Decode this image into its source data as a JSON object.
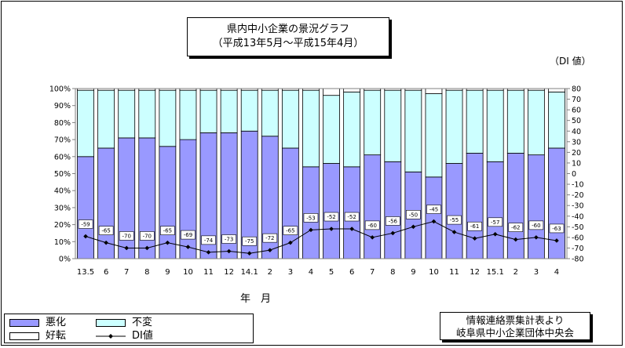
{
  "title_line1": "県内中小企業の景況グラフ",
  "title_line2": "（平成13年5月～平成15年4月）",
  "right_axis_unit": "（DI 値）",
  "x_axis_label": "年　月",
  "legend": {
    "akka": "悪化",
    "fuhen": "不変",
    "kouten": "好転",
    "di": "DI値"
  },
  "source_line1": "情報連絡票集計表より",
  "source_line2": "岐阜県中小企業団体中央会",
  "colors": {
    "akka": "#9999ff",
    "fuhen": "#ccffff",
    "kouten": "#ffffff",
    "di_line": "#000000"
  },
  "chart_data": {
    "type": "bar",
    "stacked": true,
    "categories": [
      "13.5",
      "6",
      "7",
      "8",
      "9",
      "10",
      "11",
      "12",
      "14.1",
      "2",
      "3",
      "4",
      "5",
      "6",
      "7",
      "8",
      "9",
      "10",
      "11",
      "12",
      "15.1",
      "2",
      "3",
      "4"
    ],
    "series": [
      {
        "name": "悪化",
        "values": [
          60,
          65,
          71,
          71,
          66,
          70,
          74,
          74,
          75,
          72,
          65,
          54,
          56,
          54,
          61,
          57,
          51,
          48,
          56,
          62,
          57,
          62,
          61,
          65
        ]
      },
      {
        "name": "不変",
        "values": [
          39,
          34,
          28,
          28,
          33,
          29,
          25,
          25,
          24,
          27,
          34,
          45,
          40,
          44,
          38,
          42,
          48,
          49,
          43,
          37,
          42,
          37,
          38,
          33
        ]
      },
      {
        "name": "好転",
        "values": [
          1,
          1,
          1,
          1,
          1,
          1,
          1,
          1,
          1,
          1,
          1,
          1,
          4,
          2,
          1,
          1,
          1,
          3,
          1,
          1,
          1,
          1,
          1,
          2
        ]
      },
      {
        "name": "DI値",
        "axis": "right",
        "values": [
          -59,
          -65,
          -70,
          -70,
          -65,
          -69,
          -74,
          -73,
          -75,
          -72,
          -65,
          -53,
          -52,
          -52,
          -60,
          -56,
          -50,
          -45,
          -55,
          -61,
          -57,
          -62,
          -60,
          -63
        ]
      }
    ],
    "left_axis": {
      "min": 0,
      "max": 100,
      "step": 10,
      "ticks": [
        "0%",
        "10%",
        "20%",
        "30%",
        "40%",
        "50%",
        "60%",
        "70%",
        "80%",
        "90%",
        "100%"
      ]
    },
    "right_axis": {
      "min": -80,
      "max": 80,
      "step": 10,
      "ticks": [
        "-80",
        "-70",
        "-60",
        "-50",
        "-40",
        "-30",
        "-20",
        "-10",
        "0",
        "10",
        "20",
        "30",
        "40",
        "50",
        "60",
        "70",
        "80"
      ]
    },
    "xlabel": "年　月",
    "legend_position": "bottom-left"
  }
}
